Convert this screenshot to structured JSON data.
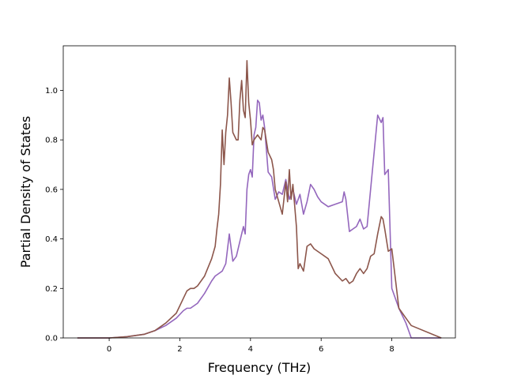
{
  "chart_data": {
    "type": "line",
    "title": "",
    "xlabel": "Frequency (THz)",
    "ylabel": "Partial Density of States",
    "xlim": [
      -1.3,
      9.8
    ],
    "ylim": [
      0.0,
      1.18
    ],
    "xticks": [
      "0",
      "2",
      "4",
      "6",
      "8"
    ],
    "yticks": [
      "0.0",
      "0.2",
      "0.4",
      "0.6",
      "0.8",
      "1.0"
    ],
    "grid": false,
    "legend": "none",
    "series": [
      {
        "color": "#9467bd",
        "x": [
          -0.9,
          0.0,
          0.5,
          1.0,
          1.3,
          1.6,
          1.9,
          2.1,
          2.2,
          2.3,
          2.5,
          2.7,
          2.9,
          3.0,
          3.1,
          3.2,
          3.3,
          3.4,
          3.5,
          3.6,
          3.7,
          3.8,
          3.85,
          3.9,
          3.95,
          4.0,
          4.05,
          4.1,
          4.15,
          4.2,
          4.25,
          4.3,
          4.35,
          4.4,
          4.5,
          4.6,
          4.7,
          4.8,
          4.9,
          5.0,
          5.1,
          5.2,
          5.3,
          5.4,
          5.5,
          5.6,
          5.7,
          5.8,
          5.9,
          6.0,
          6.2,
          6.4,
          6.6,
          6.65,
          6.7,
          6.8,
          6.9,
          7.0,
          7.1,
          7.2,
          7.3,
          7.4,
          7.5,
          7.6,
          7.7,
          7.75,
          7.8,
          7.9,
          8.0,
          8.2,
          8.4,
          8.55,
          9.4
        ],
        "y": [
          0.0,
          0.0,
          0.005,
          0.015,
          0.03,
          0.05,
          0.08,
          0.11,
          0.12,
          0.12,
          0.14,
          0.18,
          0.23,
          0.25,
          0.26,
          0.27,
          0.3,
          0.42,
          0.31,
          0.33,
          0.39,
          0.45,
          0.42,
          0.6,
          0.66,
          0.68,
          0.65,
          0.82,
          0.85,
          0.96,
          0.95,
          0.88,
          0.9,
          0.85,
          0.67,
          0.65,
          0.56,
          0.59,
          0.58,
          0.64,
          0.56,
          0.6,
          0.54,
          0.58,
          0.5,
          0.55,
          0.62,
          0.6,
          0.57,
          0.55,
          0.53,
          0.54,
          0.55,
          0.59,
          0.56,
          0.43,
          0.44,
          0.45,
          0.48,
          0.44,
          0.45,
          0.6,
          0.75,
          0.9,
          0.87,
          0.89,
          0.66,
          0.68,
          0.2,
          0.12,
          0.06,
          0.0,
          0.0
        ]
      },
      {
        "color": "#8c564b",
        "x": [
          -0.9,
          0.0,
          0.5,
          1.0,
          1.3,
          1.6,
          1.9,
          2.0,
          2.1,
          2.2,
          2.3,
          2.4,
          2.5,
          2.7,
          2.9,
          3.0,
          3.05,
          3.1,
          3.15,
          3.2,
          3.25,
          3.3,
          3.35,
          3.4,
          3.45,
          3.5,
          3.6,
          3.65,
          3.7,
          3.75,
          3.8,
          3.85,
          3.9,
          3.95,
          4.0,
          4.05,
          4.1,
          4.2,
          4.3,
          4.35,
          4.4,
          4.5,
          4.6,
          4.65,
          4.7,
          4.8,
          4.9,
          5.0,
          5.05,
          5.1,
          5.15,
          5.2,
          5.3,
          5.35,
          5.4,
          5.5,
          5.6,
          5.7,
          5.8,
          6.0,
          6.2,
          6.4,
          6.6,
          6.7,
          6.8,
          6.9,
          7.0,
          7.1,
          7.2,
          7.3,
          7.4,
          7.5,
          7.6,
          7.7,
          7.75,
          7.8,
          7.9,
          8.0,
          8.2,
          8.4,
          8.55,
          9.4
        ],
        "y": [
          0.0,
          0.0,
          0.005,
          0.015,
          0.03,
          0.06,
          0.1,
          0.13,
          0.16,
          0.19,
          0.2,
          0.2,
          0.21,
          0.25,
          0.32,
          0.37,
          0.44,
          0.5,
          0.62,
          0.84,
          0.7,
          0.83,
          0.9,
          1.05,
          0.95,
          0.83,
          0.8,
          0.8,
          0.96,
          1.04,
          0.92,
          0.89,
          1.12,
          0.95,
          0.88,
          0.78,
          0.8,
          0.82,
          0.8,
          0.85,
          0.84,
          0.75,
          0.72,
          0.68,
          0.6,
          0.55,
          0.5,
          0.63,
          0.55,
          0.68,
          0.56,
          0.62,
          0.45,
          0.28,
          0.3,
          0.27,
          0.37,
          0.38,
          0.36,
          0.34,
          0.32,
          0.26,
          0.23,
          0.24,
          0.22,
          0.23,
          0.26,
          0.28,
          0.26,
          0.28,
          0.33,
          0.34,
          0.42,
          0.49,
          0.48,
          0.44,
          0.35,
          0.36,
          0.12,
          0.08,
          0.05,
          0.0
        ]
      }
    ]
  }
}
